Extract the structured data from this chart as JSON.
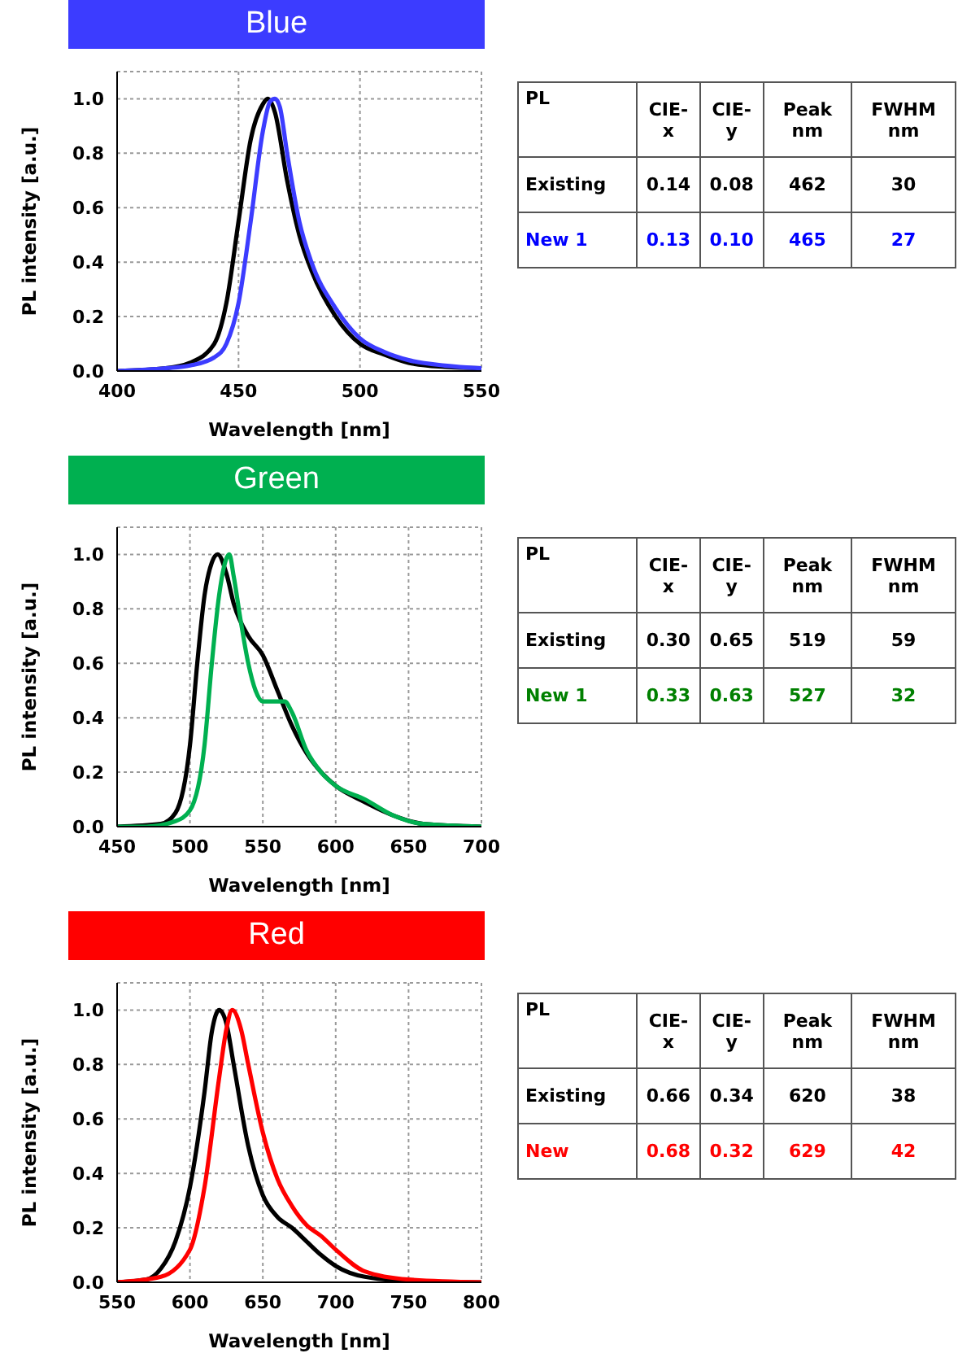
{
  "chart_data": [
    {
      "type": "line",
      "title": "Blue",
      "xlabel": "Wavelength [nm]",
      "ylabel": "PL intensity  [a.u.]",
      "xlim": [
        400,
        550
      ],
      "xticks": [
        400,
        450,
        500,
        550
      ],
      "ylim": [
        0,
        1.1
      ],
      "yticks": [
        {
          "value": 0,
          "label": "0.0"
        },
        {
          "value": 0.2,
          "label": "0.2"
        },
        {
          "value": 0.4,
          "label": "0.4"
        },
        {
          "value": 0.6,
          "label": "0.6"
        },
        {
          "value": 0.8,
          "label": "0.8"
        },
        {
          "value": 1,
          "label": "1.0"
        }
      ],
      "grid": true,
      "series": [
        {
          "color": "#000000",
          "x": [
            400,
            420,
            430,
            440,
            445,
            450,
            455,
            460,
            462,
            465,
            470,
            475,
            480,
            490,
            500,
            510,
            520,
            535,
            550
          ],
          "values": [
            0,
            0.01,
            0.03,
            0.1,
            0.25,
            0.55,
            0.85,
            0.98,
            1.0,
            0.95,
            0.7,
            0.5,
            0.37,
            0.2,
            0.1,
            0.06,
            0.03,
            0.015,
            0.01
          ]
        },
        {
          "color": "#3c3cff",
          "x": [
            400,
            420,
            430,
            440,
            445,
            450,
            455,
            460,
            463,
            465,
            467,
            470,
            475,
            480,
            490,
            500,
            510,
            520,
            535,
            550
          ],
          "values": [
            0,
            0.01,
            0.02,
            0.05,
            0.1,
            0.25,
            0.55,
            0.88,
            0.99,
            1.0,
            0.97,
            0.8,
            0.55,
            0.4,
            0.23,
            0.12,
            0.07,
            0.04,
            0.02,
            0.01
          ]
        }
      ]
    },
    {
      "type": "other",
      "legend_title": "PL",
      "categories": [
        "CIE-x",
        "CIE-y",
        "Peak nm",
        "FWHM nm"
      ],
      "series": [
        {
          "name": "Existing",
          "color": "#000000",
          "values": [
            0.14,
            0.08,
            462,
            30
          ],
          "value_labels": [
            "0.14",
            "0.08",
            "462",
            "30"
          ]
        },
        {
          "name": "New 1",
          "color": "#0000ff",
          "values": [
            0.13,
            0.1,
            465,
            27
          ],
          "value_labels": [
            "0.13",
            "0.10",
            "465",
            "27"
          ]
        }
      ]
    },
    {
      "type": "line",
      "title": "Green",
      "xlabel": "Wavelength [nm]",
      "ylabel": "PL intensity  [a.u.]",
      "xlim": [
        450,
        700
      ],
      "xticks": [
        450,
        500,
        550,
        600,
        650,
        700
      ],
      "ylim": [
        0,
        1.1
      ],
      "yticks": [
        {
          "value": 0,
          "label": "0.0"
        },
        {
          "value": 0.2,
          "label": "0.2"
        },
        {
          "value": 0.4,
          "label": "0.4"
        },
        {
          "value": 0.6,
          "label": "0.6"
        },
        {
          "value": 0.8,
          "label": "0.8"
        },
        {
          "value": 1,
          "label": "1.0"
        }
      ],
      "grid": true,
      "series": [
        {
          "color": "#000000",
          "x": [
            450,
            480,
            490,
            500,
            505,
            510,
            515,
            519,
            525,
            530,
            540,
            550,
            560,
            570,
            580,
            590,
            600,
            620,
            640,
            660,
            700
          ],
          "values": [
            0,
            0.01,
            0.05,
            0.3,
            0.6,
            0.85,
            0.97,
            1.0,
            0.93,
            0.82,
            0.7,
            0.63,
            0.5,
            0.37,
            0.27,
            0.2,
            0.15,
            0.09,
            0.04,
            0.01,
            0
          ]
        },
        {
          "color": "#00b050",
          "x": [
            450,
            470,
            490,
            500,
            510,
            515,
            520,
            527,
            530,
            535,
            540,
            545,
            550,
            560,
            565,
            570,
            580,
            590,
            600,
            620,
            640,
            660,
            700
          ],
          "values": [
            0,
            0,
            0.02,
            0.06,
            0.3,
            0.6,
            0.85,
            1.0,
            0.92,
            0.75,
            0.6,
            0.5,
            0.46,
            0.46,
            0.46,
            0.42,
            0.28,
            0.2,
            0.15,
            0.1,
            0.04,
            0.01,
            0
          ]
        }
      ]
    },
    {
      "type": "other",
      "legend_title": "PL",
      "categories": [
        "CIE-x",
        "CIE-y",
        "Peak nm",
        "FWHM nm"
      ],
      "series": [
        {
          "name": "Existing",
          "color": "#000000",
          "values": [
            0.3,
            0.65,
            519,
            59
          ],
          "value_labels": [
            "0.30",
            "0.65",
            "519",
            "59"
          ]
        },
        {
          "name": "New 1",
          "color": "#008000",
          "values": [
            0.33,
            0.63,
            527,
            32
          ],
          "value_labels": [
            "0.33",
            "0.63",
            "527",
            "32"
          ]
        }
      ]
    },
    {
      "type": "line",
      "title": "Red",
      "xlabel": "Wavelength [nm]",
      "ylabel": "PL intensity  [a.u.]",
      "xlim": [
        550,
        800
      ],
      "xticks": [
        550,
        600,
        650,
        700,
        750,
        800
      ],
      "ylim": [
        0,
        1.1
      ],
      "yticks": [
        {
          "value": 0,
          "label": "0.0"
        },
        {
          "value": 0.2,
          "label": "0.2"
        },
        {
          "value": 0.4,
          "label": "0.4"
        },
        {
          "value": 0.6,
          "label": "0.6"
        },
        {
          "value": 0.8,
          "label": "0.8"
        },
        {
          "value": 1,
          "label": "1.0"
        }
      ],
      "grid": true,
      "series": [
        {
          "color": "#000000",
          "x": [
            550,
            570,
            580,
            590,
            600,
            610,
            615,
            620,
            625,
            630,
            640,
            650,
            660,
            670,
            680,
            690,
            700,
            720,
            750,
            800
          ],
          "values": [
            0,
            0.01,
            0.05,
            0.15,
            0.35,
            0.7,
            0.92,
            1.0,
            0.95,
            0.8,
            0.5,
            0.32,
            0.24,
            0.2,
            0.15,
            0.1,
            0.06,
            0.02,
            0.005,
            0
          ]
        },
        {
          "color": "#ff0000",
          "x": [
            550,
            580,
            600,
            610,
            620,
            625,
            629,
            635,
            640,
            650,
            660,
            670,
            680,
            690,
            700,
            720,
            750,
            800
          ],
          "values": [
            0,
            0.02,
            0.12,
            0.35,
            0.75,
            0.93,
            1.0,
            0.93,
            0.8,
            0.55,
            0.38,
            0.28,
            0.21,
            0.17,
            0.12,
            0.04,
            0.01,
            0
          ]
        }
      ]
    },
    {
      "type": "other",
      "legend_title": "PL",
      "categories": [
        "CIE-x",
        "CIE-y",
        "Peak nm",
        "FWHM nm"
      ],
      "series": [
        {
          "name": "Existing",
          "color": "#000000",
          "values": [
            0.66,
            0.34,
            620,
            38
          ],
          "value_labels": [
            "0.66",
            "0.34",
            "620",
            "38"
          ]
        },
        {
          "name": "New",
          "color": "#ff0000",
          "values": [
            0.68,
            0.32,
            629,
            42
          ],
          "value_labels": [
            "0.68",
            "0.32",
            "629",
            "42"
          ]
        }
      ]
    }
  ]
}
